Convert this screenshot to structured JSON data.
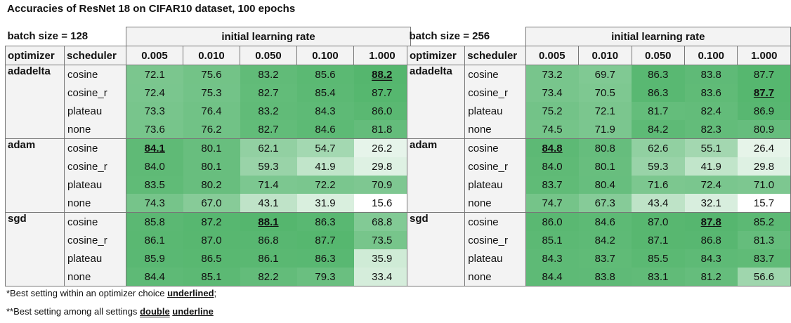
{
  "title": "Accuracies of  ResNet 18 on CIFAR10 dataset, 100 epochs",
  "header": {
    "lr_label": "initial learning rate",
    "optimizer_label": "optimizer",
    "scheduler_label": "scheduler"
  },
  "notes": {
    "line1_pre": "*Best setting within an optimizer choice ",
    "line1_u": "underlined",
    "line1_post": ";",
    "line2_pre": "**Best setting among all settings ",
    "line2_d": "double",
    "line2_sp": " ",
    "line2_u": "underline"
  },
  "colors": {
    "low": "#ffffff",
    "high": "#55b66e",
    "vmin": 15.6,
    "vmax": 88.2
  },
  "chart_data": [
    {
      "type": "table",
      "caption": "batch size = 128",
      "learning_rates": [
        "0.005",
        "0.010",
        "0.050",
        "0.100",
        "1.000"
      ],
      "optimizers": [
        {
          "name": "adadelta",
          "rows": [
            {
              "scheduler": "cosine",
              "values": [
                72.1,
                75.6,
                83.2,
                85.6,
                88.2
              ],
              "marks": [
                "",
                "",
                "",
                "",
                "double"
              ]
            },
            {
              "scheduler": "cosine_r",
              "values": [
                72.4,
                75.3,
                82.7,
                85.4,
                87.7
              ],
              "marks": [
                "",
                "",
                "",
                "",
                ""
              ]
            },
            {
              "scheduler": "plateau",
              "values": [
                73.3,
                76.4,
                83.2,
                84.3,
                86.0
              ],
              "marks": [
                "",
                "",
                "",
                "",
                ""
              ]
            },
            {
              "scheduler": "none",
              "values": [
                73.6,
                76.2,
                82.7,
                84.6,
                81.8
              ],
              "marks": [
                "",
                "",
                "",
                "",
                ""
              ]
            }
          ]
        },
        {
          "name": "adam",
          "rows": [
            {
              "scheduler": "cosine",
              "values": [
                84.1,
                80.1,
                62.1,
                54.7,
                26.2
              ],
              "marks": [
                "underline",
                "",
                "",
                "",
                ""
              ]
            },
            {
              "scheduler": "cosine_r",
              "values": [
                84.0,
                80.1,
                59.3,
                41.9,
                29.8
              ],
              "marks": [
                "",
                "",
                "",
                "",
                ""
              ]
            },
            {
              "scheduler": "plateau",
              "values": [
                83.5,
                80.2,
                71.4,
                72.2,
                70.9
              ],
              "marks": [
                "",
                "",
                "",
                "",
                ""
              ]
            },
            {
              "scheduler": "none",
              "values": [
                74.3,
                67.0,
                43.1,
                31.9,
                15.6
              ],
              "marks": [
                "",
                "",
                "",
                "",
                ""
              ]
            }
          ]
        },
        {
          "name": "sgd",
          "rows": [
            {
              "scheduler": "cosine",
              "values": [
                85.8,
                87.2,
                88.1,
                86.3,
                68.8
              ],
              "marks": [
                "",
                "",
                "underline",
                "",
                ""
              ]
            },
            {
              "scheduler": "cosine_r",
              "values": [
                86.1,
                87.0,
                86.8,
                87.7,
                73.5
              ],
              "marks": [
                "",
                "",
                "",
                "",
                ""
              ]
            },
            {
              "scheduler": "plateau",
              "values": [
                85.9,
                86.5,
                86.1,
                86.3,
                35.9
              ],
              "marks": [
                "",
                "",
                "",
                "",
                ""
              ]
            },
            {
              "scheduler": "none",
              "values": [
                84.4,
                85.1,
                82.2,
                79.3,
                33.4
              ],
              "marks": [
                "",
                "",
                "",
                "",
                ""
              ]
            }
          ]
        }
      ]
    },
    {
      "type": "table",
      "caption": "batch size = 256",
      "learning_rates": [
        "0.005",
        "0.010",
        "0.050",
        "0.100",
        "1.000"
      ],
      "optimizers": [
        {
          "name": "adadelta",
          "rows": [
            {
              "scheduler": "cosine",
              "values": [
                73.2,
                69.7,
                86.3,
                83.8,
                87.7
              ],
              "marks": [
                "",
                "",
                "",
                "",
                ""
              ]
            },
            {
              "scheduler": "cosine_r",
              "values": [
                73.4,
                70.5,
                86.3,
                83.6,
                87.7
              ],
              "marks": [
                "",
                "",
                "",
                "",
                "underline"
              ]
            },
            {
              "scheduler": "plateau",
              "values": [
                75.2,
                72.1,
                81.7,
                82.4,
                86.9
              ],
              "marks": [
                "",
                "",
                "",
                "",
                ""
              ]
            },
            {
              "scheduler": "none",
              "values": [
                74.5,
                71.9,
                84.2,
                82.3,
                80.9
              ],
              "marks": [
                "",
                "",
                "",
                "",
                ""
              ]
            }
          ]
        },
        {
          "name": "adam",
          "rows": [
            {
              "scheduler": "cosine",
              "values": [
                84.8,
                80.8,
                62.6,
                55.1,
                26.4
              ],
              "marks": [
                "underline",
                "",
                "",
                "",
                ""
              ]
            },
            {
              "scheduler": "cosine_r",
              "values": [
                84.0,
                80.1,
                59.3,
                41.9,
                29.8
              ],
              "marks": [
                "",
                "",
                "",
                "",
                ""
              ]
            },
            {
              "scheduler": "plateau",
              "values": [
                83.7,
                80.4,
                71.6,
                72.4,
                71.0
              ],
              "marks": [
                "",
                "",
                "",
                "",
                ""
              ]
            },
            {
              "scheduler": "none",
              "values": [
                74.7,
                67.3,
                43.4,
                32.1,
                15.7
              ],
              "marks": [
                "",
                "",
                "",
                "",
                ""
              ]
            }
          ]
        },
        {
          "name": "sgd",
          "rows": [
            {
              "scheduler": "cosine",
              "values": [
                86.0,
                84.6,
                87.0,
                87.8,
                85.2
              ],
              "marks": [
                "",
                "",
                "",
                "underline",
                ""
              ]
            },
            {
              "scheduler": "cosine_r",
              "values": [
                85.1,
                84.2,
                87.1,
                86.8,
                81.3
              ],
              "marks": [
                "",
                "",
                "",
                "",
                ""
              ]
            },
            {
              "scheduler": "plateau",
              "values": [
                84.3,
                83.7,
                85.5,
                84.3,
                83.7
              ],
              "marks": [
                "",
                "",
                "",
                "",
                ""
              ]
            },
            {
              "scheduler": "none",
              "values": [
                84.4,
                83.8,
                83.1,
                81.2,
                56.6
              ],
              "marks": [
                "",
                "",
                "",
                "",
                ""
              ]
            }
          ]
        }
      ]
    }
  ]
}
